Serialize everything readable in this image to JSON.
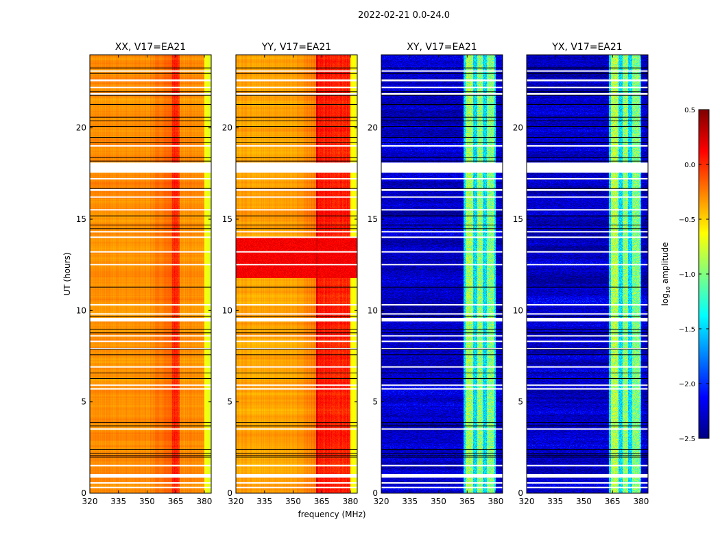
{
  "chart_data": {
    "type": "heatmap",
    "suptitle": "2022-02-21 0.0-24.0",
    "xlabel": "frequency (MHz)",
    "ylabel": "UT (hours)",
    "xlim": [
      320,
      383.6
    ],
    "ylim": [
      0,
      24
    ],
    "xticks": [
      320,
      335,
      350,
      365,
      380
    ],
    "yticks": [
      0,
      5,
      10,
      15,
      20
    ],
    "panels": [
      {
        "title": "XX, V17=EA21",
        "kind": "parallel",
        "base": -0.3,
        "peak": [
          363,
          367,
          0.0
        ],
        "edge": -0.65,
        "hot_hours": []
      },
      {
        "title": "YY, V17=EA21",
        "kind": "parallel",
        "base": -0.35,
        "peak": [
          362,
          380,
          0.05
        ],
        "edge": -0.6,
        "hot_hours": [
          [
            11.8,
            14.0,
            0.15
          ]
        ]
      },
      {
        "title": "XY, V17=EA21",
        "kind": "cross",
        "base": -2.3,
        "bands": [
          [
            364,
            368,
            -0.9
          ],
          [
            370,
            373,
            -0.95
          ],
          [
            375,
            379,
            -1.0
          ]
        ],
        "gap": -1.5
      },
      {
        "title": "YX, V17=EA21",
        "kind": "cross",
        "base": -2.3,
        "bands": [
          [
            364,
            368,
            -0.85
          ],
          [
            370,
            373,
            -0.95
          ],
          [
            375,
            379,
            -1.0
          ]
        ],
        "gap": -1.5
      }
    ],
    "flagged_white_hours": [
      [
        0.85,
        1.05
      ],
      [
        17.55,
        18.1
      ],
      [
        9.4,
        9.6
      ],
      [
        0.3,
        0.35
      ],
      [
        0.55,
        0.6
      ],
      [
        1.5,
        1.55
      ],
      [
        3.5,
        3.55
      ],
      [
        5.7,
        5.75
      ],
      [
        5.9,
        5.95
      ],
      [
        6.9,
        6.95
      ],
      [
        7.9,
        7.95
      ],
      [
        8.3,
        8.35
      ],
      [
        8.6,
        8.65
      ],
      [
        9.8,
        9.85
      ],
      [
        10.3,
        10.35
      ],
      [
        12.5,
        12.55
      ],
      [
        13.2,
        13.25
      ],
      [
        14.0,
        14.05
      ],
      [
        14.3,
        14.35
      ],
      [
        15.5,
        15.55
      ],
      [
        16.2,
        16.25
      ],
      [
        16.55,
        16.65
      ],
      [
        17.2,
        17.25
      ],
      [
        19.0,
        19.05
      ],
      [
        21.8,
        21.9
      ],
      [
        22.2,
        22.25
      ],
      [
        22.55,
        22.65
      ],
      [
        23.1,
        23.15
      ]
    ],
    "flagged_black_hours": [
      2.0,
      2.1,
      2.2,
      2.4,
      3.7,
      3.9,
      6.3,
      6.6,
      7.6,
      7.9,
      8.8,
      9.0,
      9.7,
      11.3,
      14.5,
      14.7,
      15.2,
      16.7,
      18.2,
      18.4,
      19.2,
      19.5,
      20.1,
      20.4,
      20.6,
      21.3,
      21.8,
      22.0,
      23.0,
      23.3
    ],
    "colorbar": {
      "label_prefix": "log",
      "label_sub": "10",
      "label_suffix": " amplitude",
      "range": [
        -2.5,
        0.5
      ],
      "ticks": [
        "0.5",
        "0.0",
        "−0.5",
        "−1.0",
        "−1.5",
        "−2.0",
        "−2.5"
      ],
      "tick_values": [
        0.5,
        0.0,
        -0.5,
        -1.0,
        -1.5,
        -2.0,
        -2.5
      ],
      "colormap": "jet"
    }
  }
}
